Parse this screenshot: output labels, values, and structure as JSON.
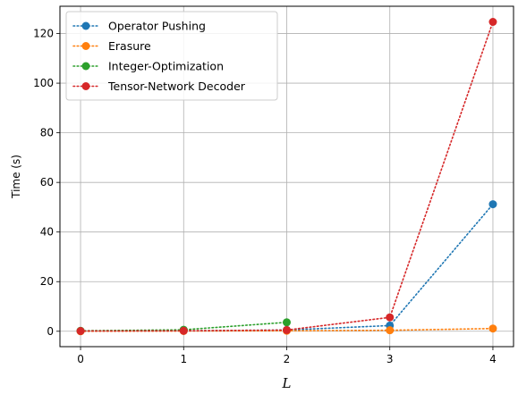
{
  "chart_data": {
    "type": "line",
    "title": "",
    "xlabel": "L",
    "ylabel": "Time (s)",
    "x": [
      0,
      1,
      2,
      3,
      4
    ],
    "x_ticks": [
      "0",
      "1",
      "2",
      "3",
      "4"
    ],
    "y_ticks": [
      "0",
      "20",
      "40",
      "60",
      "80",
      "100",
      "120"
    ],
    "xlim": [
      -0.2,
      4.2
    ],
    "ylim": [
      -6.2,
      131
    ],
    "grid": true,
    "legend_position": "top-left",
    "line_style": "dotted",
    "series": [
      {
        "name": "Operator Pushing",
        "color": "#1f77b4",
        "x": [
          0,
          1,
          2,
          3,
          4
        ],
        "values": [
          0.1,
          0.2,
          0.5,
          2.3,
          51.2
        ]
      },
      {
        "name": "Erasure",
        "color": "#ff7f0e",
        "x": [
          0,
          1,
          2,
          3,
          4
        ],
        "values": [
          0.0,
          0.1,
          0.2,
          0.4,
          1.1
        ]
      },
      {
        "name": "Integer-Optimization",
        "color": "#2ca02c",
        "x": [
          0,
          1,
          2
        ],
        "values": [
          0.2,
          0.6,
          3.6
        ]
      },
      {
        "name": "Tensor-Network Decoder",
        "color": "#d62728",
        "x": [
          0,
          1,
          2,
          3,
          4
        ],
        "values": [
          0.1,
          0.2,
          0.5,
          5.6,
          124.7
        ]
      }
    ]
  }
}
